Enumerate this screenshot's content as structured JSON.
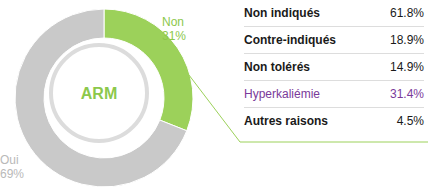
{
  "chart_data": {
    "type": "pie",
    "title": "ARM",
    "categories": [
      "Non",
      "Oui"
    ],
    "values": [
      31,
      69
    ],
    "value_labels": [
      "31%",
      "69%"
    ],
    "colors": [
      "#9cd15a",
      "#c9c9c9"
    ],
    "data_labels": true
  },
  "table": {
    "rows": [
      {
        "label": "Non indiqués",
        "value": "61.8%"
      },
      {
        "label": "Contre-indiqués",
        "value": "18.9%"
      },
      {
        "label": "Non tolérés",
        "value": "14.9%"
      },
      {
        "label": "Hyperkaliémie",
        "value": "31.4%",
        "color": "#7a3a9a"
      },
      {
        "label": "Autres raisons",
        "value": "4.5%"
      }
    ]
  }
}
